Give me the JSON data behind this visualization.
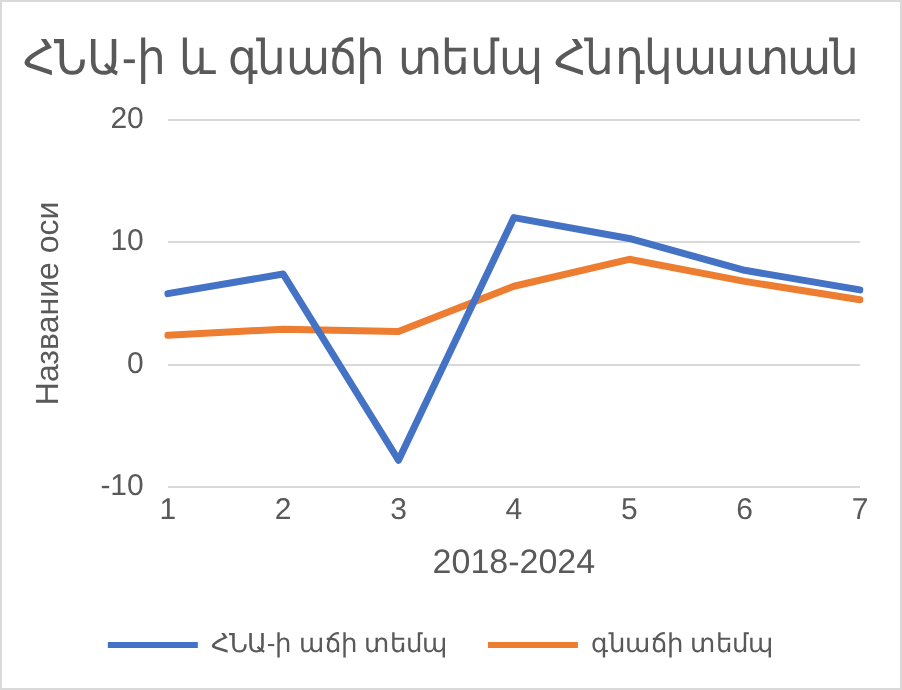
{
  "chart_data": {
    "type": "line",
    "title": "ՀՆԱ-ի և գնաճի տեմպ Հնդկաստան",
    "xlabel": "2018-2024",
    "ylabel": "Название оси",
    "categories": [
      "1",
      "2",
      "3",
      "4",
      "5",
      "6",
      "7"
    ],
    "series": [
      {
        "name": "ՀՆԱ-ի աճի տեմպ",
        "color": "#4472c4",
        "values": [
          5.8,
          7.4,
          -7.8,
          12,
          10.3,
          7.7,
          6.1
        ]
      },
      {
        "name": "գնաճի տեմպ",
        "color": "#ed7d31",
        "values": [
          2.4,
          2.9,
          2.7,
          6.4,
          8.6,
          6.8,
          5.3
        ]
      }
    ],
    "ylim": [
      -10,
      20
    ],
    "yticks": [
      -10,
      0,
      10,
      20
    ],
    "grid": "y",
    "legend": "bottom",
    "marker": "none",
    "line_style": "solid"
  }
}
